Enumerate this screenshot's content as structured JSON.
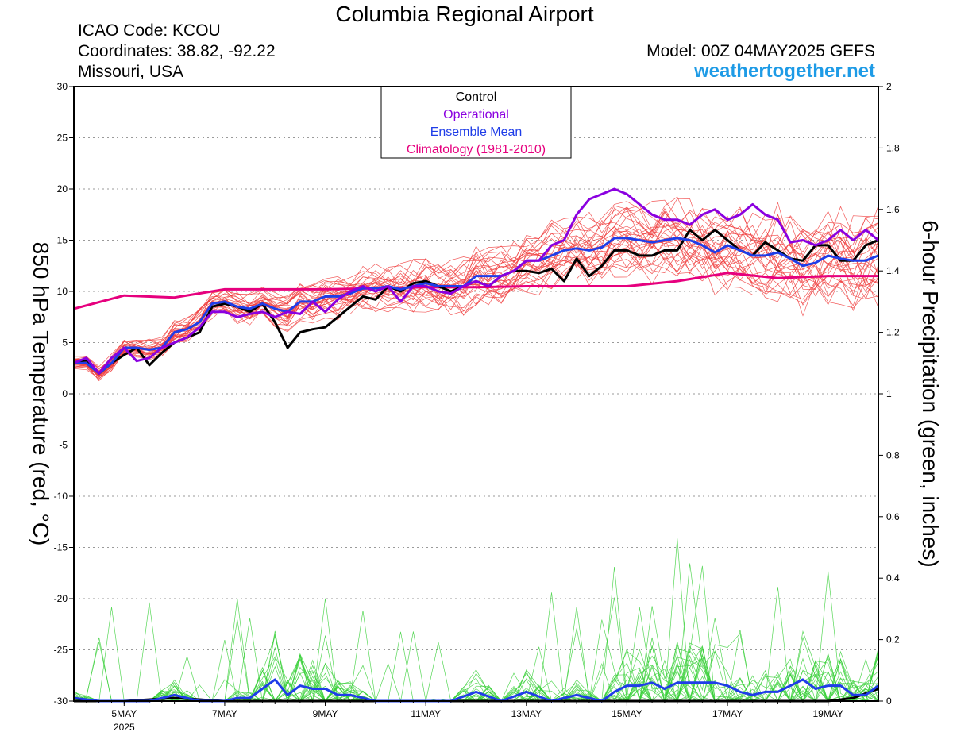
{
  "header": {
    "title": "Columbia Regional Airport",
    "icao": "ICAO Code: KCOU",
    "coords": "Coordinates: 38.82, -92.22",
    "region": "Missouri, USA",
    "model": "Model: 00Z 04MAY2025 GEFS",
    "site": "weathertogether.net"
  },
  "chart_data": {
    "type": "line",
    "title": "Columbia Regional Airport",
    "ylabel": "850 hPa Temperature (red, °C)",
    "y2label": "6-hour Precipitation (green, inches)",
    "ylim": [
      -30,
      30
    ],
    "y2lim": [
      0,
      2
    ],
    "xlim_days": [
      4.0,
      20.0
    ],
    "x_ticks": [
      "5MAY",
      "7MAY",
      "9MAY",
      "11MAY",
      "13MAY",
      "15MAY",
      "17MAY",
      "19MAY"
    ],
    "x_tick_sublabel": "2025",
    "y_ticks": [
      "30",
      "25",
      "20",
      "15",
      "10",
      "5",
      "0",
      "-5",
      "-10",
      "-15",
      "-20",
      "-25",
      "-30"
    ],
    "y2_ticks": [
      "2",
      "1.8",
      "1.6",
      "1.4",
      "1.2",
      "1",
      "0.8",
      "0.6",
      "0.4",
      "0.2",
      "0"
    ],
    "grid": true,
    "legend_position": "top-center",
    "legend": [
      {
        "label": "Control",
        "color": "#000000"
      },
      {
        "label": "Operational",
        "color": "#8a00e0"
      },
      {
        "label": "Ensemble Mean",
        "color": "#1f3de8"
      },
      {
        "label": "Climatology (1981-2010)",
        "color": "#e6007e"
      }
    ],
    "series": [
      {
        "name": "Control",
        "color": "#000000",
        "axis": "temp",
        "x": [
          4.0,
          4.25,
          4.5,
          4.75,
          5.0,
          5.25,
          5.5,
          5.75,
          6.0,
          6.25,
          6.5,
          6.75,
          7.0,
          7.25,
          7.5,
          7.75,
          8.0,
          8.25,
          8.5,
          8.75,
          9.0,
          9.25,
          9.5,
          9.75,
          10.0,
          10.25,
          10.5,
          10.75,
          11.0,
          11.25,
          11.5,
          11.75,
          12.0,
          12.25,
          12.5,
          12.75,
          13.0,
          13.25,
          13.5,
          13.75,
          14.0,
          14.25,
          14.5,
          14.75,
          15.0,
          15.25,
          15.5,
          15.75,
          16.0,
          16.25,
          16.5,
          16.75,
          17.0,
          17.25,
          17.5,
          17.75,
          18.0,
          18.25,
          18.5,
          18.75,
          19.0,
          19.25,
          19.5,
          19.75,
          20.0
        ],
        "y": [
          3.0,
          3.3,
          2.0,
          3.0,
          3.8,
          4.5,
          2.8,
          4.0,
          5.0,
          5.5,
          6.0,
          8.5,
          8.8,
          8.5,
          8.0,
          8.8,
          7.0,
          4.5,
          6.0,
          6.3,
          6.5,
          7.5,
          8.5,
          9.5,
          9.2,
          10.5,
          10.0,
          10.8,
          11.0,
          10.5,
          10.0,
          10.5,
          11.0,
          10.5,
          11.5,
          12.0,
          12.0,
          11.8,
          12.2,
          11.0,
          13.2,
          11.5,
          12.5,
          14.0,
          14.0,
          13.5,
          13.5,
          14.0,
          14.0,
          16.0,
          15.0,
          16.0,
          15.0,
          14.0,
          13.5,
          14.8,
          14.0,
          13.2,
          13.0,
          14.5,
          14.5,
          13.0,
          13.0,
          14.5,
          15.0
        ]
      },
      {
        "name": "Operational",
        "color": "#8a00e0",
        "axis": "temp",
        "x": [
          4.0,
          4.25,
          4.5,
          4.75,
          5.0,
          5.25,
          5.5,
          5.75,
          6.0,
          6.25,
          6.5,
          6.75,
          7.0,
          7.25,
          7.5,
          7.75,
          8.0,
          8.25,
          8.5,
          8.75,
          9.0,
          9.25,
          9.5,
          9.75,
          10.0,
          10.25,
          10.5,
          10.75,
          11.0,
          11.25,
          11.5,
          11.75,
          12.0,
          12.25,
          12.5,
          12.75,
          13.0,
          13.25,
          13.5,
          13.75,
          14.0,
          14.25,
          14.5,
          14.75,
          15.0,
          15.25,
          15.5,
          15.75,
          16.0,
          16.25,
          16.5,
          16.75,
          17.0,
          17.25,
          17.5,
          17.75,
          18.0,
          18.25,
          18.5,
          18.75,
          19.0,
          19.25,
          19.5,
          19.75,
          20.0
        ],
        "y": [
          3.0,
          3.5,
          2.0,
          3.5,
          4.5,
          3.2,
          3.5,
          4.5,
          5.0,
          5.5,
          6.5,
          8.0,
          8.0,
          7.5,
          7.8,
          8.0,
          7.5,
          8.0,
          7.8,
          9.0,
          8.0,
          9.2,
          10.0,
          10.5,
          10.0,
          10.5,
          9.0,
          10.5,
          10.5,
          10.0,
          9.8,
          10.5,
          11.0,
          10.5,
          11.5,
          12.0,
          13.0,
          13.0,
          14.5,
          15.0,
          17.5,
          19.0,
          19.5,
          20.0,
          19.5,
          18.5,
          17.5,
          17.0,
          17.0,
          16.5,
          17.5,
          18.0,
          17.0,
          17.5,
          18.5,
          17.5,
          17.0,
          14.8,
          15.0,
          14.5,
          15.0,
          16.0,
          15.0,
          16.0,
          15.0
        ]
      },
      {
        "name": "Ensemble Mean",
        "color": "#1f3de8",
        "axis": "temp",
        "x": [
          4.0,
          4.25,
          4.5,
          4.75,
          5.0,
          5.25,
          5.5,
          5.75,
          6.0,
          6.25,
          6.5,
          6.75,
          7.0,
          7.25,
          7.5,
          7.75,
          8.0,
          8.25,
          8.5,
          8.75,
          9.0,
          9.25,
          9.5,
          9.75,
          10.0,
          10.25,
          10.5,
          10.75,
          11.0,
          11.25,
          11.5,
          11.75,
          12.0,
          12.25,
          12.5,
          12.75,
          13.0,
          13.25,
          13.5,
          13.75,
          14.0,
          14.25,
          14.5,
          14.75,
          15.0,
          15.25,
          15.5,
          15.75,
          16.0,
          16.25,
          16.5,
          16.75,
          17.0,
          17.25,
          17.5,
          17.75,
          18.0,
          18.25,
          18.5,
          18.75,
          19.0,
          19.25,
          19.5,
          19.75,
          20.0
        ],
        "y": [
          3.0,
          3.0,
          2.0,
          3.0,
          4.5,
          4.5,
          4.3,
          4.5,
          6.0,
          6.3,
          7.0,
          8.8,
          9.0,
          8.5,
          8.3,
          8.8,
          8.3,
          8.0,
          9.0,
          9.0,
          9.5,
          9.5,
          9.8,
          10.3,
          10.3,
          10.5,
          10.2,
          10.5,
          10.8,
          10.5,
          10.5,
          10.5,
          11.5,
          11.5,
          11.5,
          12.0,
          13.0,
          13.0,
          13.5,
          14.0,
          14.2,
          14.0,
          14.3,
          15.2,
          15.2,
          15.0,
          14.8,
          15.0,
          15.2,
          15.0,
          14.5,
          13.8,
          14.5,
          14.0,
          13.5,
          13.5,
          13.8,
          13.2,
          12.5,
          12.8,
          13.5,
          13.2,
          13.0,
          13.0,
          13.5
        ]
      },
      {
        "name": "Climatology (1981-2010)",
        "color": "#e6007e",
        "axis": "temp",
        "x": [
          4.0,
          5.0,
          6.0,
          7.0,
          8.0,
          9.0,
          10.0,
          11.0,
          12.0,
          13.0,
          14.0,
          15.0,
          16.0,
          17.0,
          18.0,
          19.0,
          20.0
        ],
        "y": [
          8.3,
          9.6,
          9.4,
          10.2,
          10.2,
          10.2,
          10.3,
          10.4,
          10.4,
          10.5,
          10.5,
          10.5,
          11.0,
          11.8,
          11.3,
          11.5,
          11.5
        ]
      },
      {
        "name": "Ensemble Mean Precip",
        "color": "#1f3de8",
        "axis": "precip",
        "x": [
          4.0,
          4.5,
          5.0,
          5.5,
          6.0,
          6.5,
          7.0,
          7.25,
          7.5,
          7.75,
          8.0,
          8.25,
          8.5,
          8.75,
          9.0,
          9.25,
          9.5,
          9.75,
          10.0,
          10.5,
          11.0,
          11.5,
          12.0,
          12.5,
          13.0,
          13.5,
          14.0,
          14.5,
          14.75,
          15.0,
          15.25,
          15.5,
          15.75,
          16.0,
          16.25,
          16.5,
          16.75,
          17.0,
          17.25,
          17.5,
          17.75,
          18.0,
          18.25,
          18.5,
          18.75,
          19.0,
          19.25,
          19.5,
          19.75,
          20.0
        ],
        "y": [
          0.01,
          0.0,
          0.0,
          0.0,
          0.02,
          0.0,
          0.0,
          0.01,
          0.01,
          0.04,
          0.07,
          0.02,
          0.05,
          0.04,
          0.04,
          0.02,
          0.02,
          0.01,
          0.0,
          0.0,
          0.0,
          0.0,
          0.03,
          0.0,
          0.03,
          0.0,
          0.02,
          0.0,
          0.03,
          0.05,
          0.05,
          0.06,
          0.04,
          0.06,
          0.06,
          0.06,
          0.06,
          0.05,
          0.03,
          0.02,
          0.03,
          0.03,
          0.05,
          0.07,
          0.04,
          0.05,
          0.05,
          0.02,
          0.02,
          0.05
        ]
      },
      {
        "name": "Control Precip",
        "color": "#000000",
        "axis": "precip",
        "x": [
          4.0,
          5.0,
          6.0,
          7.0,
          8.0,
          9.0,
          10.0,
          11.0,
          12.0,
          13.0,
          14.0,
          15.0,
          16.0,
          17.0,
          18.0,
          19.0,
          19.5,
          20.0
        ],
        "y": [
          0.0,
          0.0,
          0.01,
          0.0,
          0.0,
          0.0,
          0.0,
          0.0,
          0.0,
          0.0,
          0.0,
          0.0,
          0.0,
          0.0,
          0.0,
          0.0,
          0.01,
          0.04
        ]
      }
    ]
  }
}
